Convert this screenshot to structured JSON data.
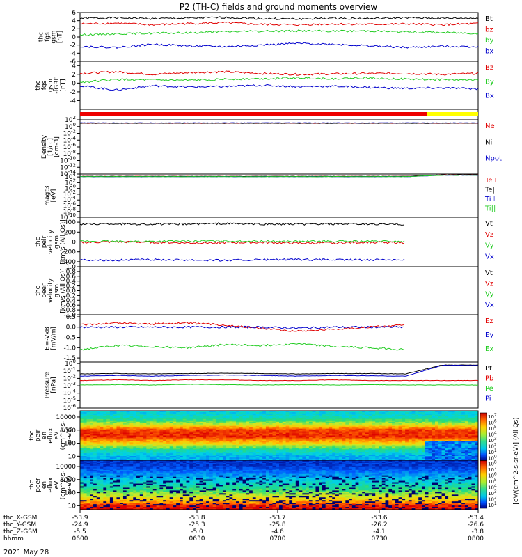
{
  "title": "P2 (TH-C) fields and ground moments overview",
  "date_label": "2021 May 28",
  "colors": {
    "black": "#000000",
    "red": "#e00000",
    "green": "#22cc22",
    "blue": "#0000cc",
    "magenta": "#cc00cc"
  },
  "chart_data": [
    {
      "type": "line",
      "ylabel": [
        "thc",
        "fgs",
        "gsm",
        "[nT]"
      ],
      "yticks": [
        "6",
        "4",
        "2",
        "0",
        "-2",
        "-4",
        "-6"
      ],
      "ylim": [
        -6,
        6
      ],
      "series": [
        {
          "name": "Bt",
          "color": "black",
          "values": [
            4.6,
            4.7,
            4.5,
            4.6,
            4.8,
            4.5,
            4.4,
            4.6,
            4.5,
            4.7,
            4.6,
            4.6
          ]
        },
        {
          "name": "bz",
          "color": "red",
          "values": [
            3.2,
            3.4,
            3.0,
            3.3,
            3.5,
            3.1,
            3.0,
            3.2,
            3.1,
            3.2,
            3.0,
            3.3
          ]
        },
        {
          "name": "by",
          "color": "green",
          "values": [
            0.5,
            0.8,
            0.9,
            1.0,
            1.3,
            1.4,
            1.5,
            1.4,
            1.5,
            1.2,
            1.1,
            0.9
          ]
        },
        {
          "name": "bx",
          "color": "blue",
          "values": [
            -2.3,
            -2.6,
            -1.8,
            -2.2,
            -2.4,
            -2.0,
            -1.6,
            -1.8,
            -2.2,
            -2.6,
            -2.3,
            -2.4
          ]
        }
      ]
    },
    {
      "type": "line",
      "ylabel": [
        "thc",
        "fgs",
        "gsm",
        "-IGRF",
        "[nT]"
      ],
      "yticks": [
        "4",
        "2",
        "0",
        "-2",
        "-4"
      ],
      "ylim": [
        -6,
        5
      ],
      "series": [
        {
          "name": "Bz",
          "color": "red",
          "values": [
            2.2,
            2.6,
            2.0,
            2.4,
            2.6,
            2.2,
            2.0,
            2.1,
            2.2,
            2.2,
            2.0,
            2.2
          ]
        },
        {
          "name": "By",
          "color": "green",
          "values": [
            0.2,
            0.8,
            0.7,
            0.6,
            0.9,
            1.0,
            1.2,
            1.0,
            1.2,
            0.9,
            0.8,
            0.7
          ]
        },
        {
          "name": "Bx",
          "color": "blue",
          "values": [
            -0.6,
            -1.6,
            -0.6,
            -0.9,
            -0.8,
            -0.5,
            -0.8,
            -0.7,
            -1.0,
            -1.2,
            -1.1,
            -1.3
          ]
        }
      ]
    },
    {
      "type": "bar",
      "ylabel": [],
      "yticks": [],
      "segments": [
        {
          "from": 0,
          "to": 0.872,
          "color": "#ee0000"
        },
        {
          "from": 0.872,
          "to": 1,
          "color": "#ffff00"
        }
      ]
    },
    {
      "type": "line",
      "ylabel": [
        "Density",
        "[1/cc]",
        "[cm-3]"
      ],
      "yticks": [
        "10^2",
        "10^0",
        "10^-2",
        "10^-4",
        "10^-6",
        "10^-8",
        "10^-10",
        "10^-12",
        "10^-14"
      ],
      "ylim": [
        -14,
        2
      ],
      "log": true,
      "series": [
        {
          "name": "Ne",
          "color": "red",
          "values": [
            1.0,
            1.0,
            1.0,
            1.0,
            1.0,
            1.0,
            1.0,
            1.0,
            1.0,
            1.0,
            1.0,
            1.0
          ]
        },
        {
          "name": "Ni",
          "color": "black",
          "values": [
            1.0,
            1.0,
            1.0,
            1.0,
            1.0,
            1.0,
            1.0,
            1.0,
            1.0,
            1.0,
            1.0,
            1.0
          ]
        },
        {
          "name": "Npot",
          "color": "blue",
          "values": [
            1.1,
            1.1,
            1.1,
            1.1,
            1.1,
            1.1,
            1.1,
            1.1,
            1.1,
            1.1,
            1.1,
            1.1
          ]
        }
      ]
    },
    {
      "type": "line",
      "ylabel": [
        "magt3",
        "[eV]"
      ],
      "yticks": [
        "10^4",
        "10^2",
        "10^0",
        "10^-2",
        "10^-4",
        "10^-6",
        "10^-8",
        "10^-10"
      ],
      "ylim": [
        -10,
        5
      ],
      "log": true,
      "series": [
        {
          "name": "Te⊥",
          "color": "red",
          "values": [
            4.2,
            4.2,
            4.2,
            4.2,
            4.2,
            4.2,
            4.2,
            4.2,
            4.2,
            4.2,
            4.7,
            4.7
          ]
        },
        {
          "name": "Te||",
          "color": "black",
          "values": [
            4.2,
            4.2,
            4.2,
            4.2,
            4.2,
            4.2,
            4.2,
            4.2,
            4.2,
            4.2,
            4.7,
            4.7
          ]
        },
        {
          "name": "Ti⊥",
          "color": "blue",
          "values": [
            4.1,
            4.1,
            4.1,
            4.1,
            4.1,
            4.1,
            4.1,
            4.1,
            4.1,
            4.1,
            4.6,
            4.6
          ]
        },
        {
          "name": "Ti||",
          "color": "green",
          "values": [
            4.1,
            4.1,
            4.1,
            4.1,
            4.1,
            4.1,
            4.1,
            4.1,
            4.1,
            4.1,
            4.6,
            4.6
          ]
        }
      ]
    },
    {
      "type": "line",
      "ylabel": [
        "thc",
        "peir",
        "velocity",
        "gsm",
        "[km/s (All Qs)]"
      ],
      "yticks": [
        "400",
        "200",
        "0",
        "-200",
        "-400"
      ],
      "ylim": [
        -500,
        500
      ],
      "series": [
        {
          "name": "Vt",
          "color": "black",
          "values": [
            360,
            368,
            358,
            362,
            372,
            360,
            358,
            362,
            360,
            356,
            null,
            null
          ]
        },
        {
          "name": "Vz",
          "color": "red",
          "values": [
            -10,
            0,
            -5,
            -20,
            -15,
            -10,
            -25,
            -20,
            -5,
            -15,
            null,
            null
          ]
        },
        {
          "name": "Vy",
          "color": "green",
          "values": [
            15,
            10,
            12,
            18,
            20,
            15,
            10,
            12,
            14,
            10,
            null,
            null
          ]
        },
        {
          "name": "Vx",
          "color": "blue",
          "values": [
            -360,
            -368,
            -358,
            -362,
            -372,
            -360,
            -358,
            -362,
            -360,
            -356,
            null,
            null
          ]
        }
      ]
    },
    {
      "type": "line",
      "ylabel": [
        "thc",
        "peer",
        "velocity",
        "gsm",
        "[km/s (All Qs)]"
      ],
      "yticks": [
        "1.0",
        "0.8",
        "0.6",
        "0.4",
        "0.2",
        "0.0",
        "-0.2",
        "-0.4",
        "-0.6",
        "-0.8",
        "-1.0"
      ],
      "ylim": [
        -1,
        1
      ],
      "series": [
        {
          "name": "Vt",
          "color": "black",
          "values": []
        },
        {
          "name": "Vz",
          "color": "red",
          "values": []
        },
        {
          "name": "Vy",
          "color": "green",
          "values": []
        },
        {
          "name": "Vx",
          "color": "blue",
          "values": []
        }
      ]
    },
    {
      "type": "line",
      "ylabel": [
        "E=-VxB",
        "[mV/m]"
      ],
      "yticks": [
        "0.5",
        "0.0",
        "-0.5",
        "-1.0",
        "-1.5"
      ],
      "ylim": [
        -1.7,
        0.6
      ],
      "series": [
        {
          "name": "Ez",
          "color": "red",
          "values": [
            0.1,
            0.2,
            0.15,
            0.2,
            0.1,
            -0.05,
            -0.2,
            -0.1,
            0.0,
            0.1,
            null,
            null
          ]
        },
        {
          "name": "Ey",
          "color": "blue",
          "values": [
            0.0,
            0.0,
            0.0,
            0.0,
            0.0,
            0.0,
            -0.05,
            0.0,
            0.0,
            0.0,
            null,
            null
          ]
        },
        {
          "name": "Ex",
          "color": "green",
          "values": [
            -1.1,
            -0.9,
            -0.95,
            -1.0,
            -0.85,
            -0.9,
            -0.8,
            -0.95,
            -1.0,
            -1.1,
            null,
            null
          ]
        }
      ]
    },
    {
      "type": "line",
      "ylabel": [
        "Pressure",
        "[nPa]"
      ],
      "yticks": [
        "10^0",
        "10^-1",
        "10^-2",
        "10^-3",
        "10^-4",
        "10^-5",
        "10^-6"
      ],
      "ylim": [
        -6,
        0.2
      ],
      "log": true,
      "series": [
        {
          "name": "Pt",
          "color": "black",
          "values": [
            -1.4,
            -1.35,
            -1.4,
            -1.35,
            -1.3,
            -1.35,
            -1.4,
            -1.35,
            -1.35,
            -1.4,
            -0.2,
            -0.2
          ]
        },
        {
          "name": "Pb",
          "color": "red",
          "values": [
            -2.3,
            -2.2,
            -2.3,
            -2.2,
            -2.2,
            -2.3,
            -2.3,
            -2.2,
            -2.3,
            -2.3,
            -2.3,
            -2.3
          ]
        },
        {
          "name": "Pe",
          "color": "green",
          "values": [
            -2.9,
            -2.85,
            -2.9,
            -2.8,
            -2.85,
            -2.9,
            -2.85,
            -2.9,
            -2.85,
            -2.9,
            -2.9,
            -2.9
          ]
        },
        {
          "name": "Pi",
          "color": "blue",
          "values": [
            -1.7,
            -1.6,
            -1.7,
            -1.6,
            -1.55,
            -1.6,
            -1.7,
            -1.6,
            -1.65,
            -1.7,
            -0.25,
            -0.25
          ]
        }
      ]
    },
    {
      "type": "heatmap",
      "ylabel": [
        "thc",
        "peir",
        "en",
        "eflux",
        "eV",
        "(cm^2-s-",
        "sr-eV)"
      ],
      "yticks": [
        "10000",
        "1000",
        "100",
        "10"
      ],
      "ylim": [
        5,
        30000
      ],
      "profile": [
        [
          1.0,
          0.3
        ],
        [
          1.5,
          0.45
        ],
        [
          2.0,
          0.72
        ],
        [
          2.5,
          0.95
        ],
        [
          3.0,
          0.92
        ],
        [
          3.5,
          0.6
        ],
        [
          4.0,
          0.4
        ],
        [
          4.5,
          0.35
        ]
      ]
    },
    {
      "type": "heatmap",
      "ylabel": [
        "thc",
        "peer",
        "en",
        "eflux",
        "eV",
        "(cm^2-s-",
        "sr-eV)"
      ],
      "yticks": [
        "10000",
        "1000",
        "100",
        "10"
      ],
      "ylim": [
        5,
        30000
      ],
      "profile": [
        [
          0.7,
          1.0
        ],
        [
          1.0,
          0.95
        ],
        [
          1.3,
          0.8
        ],
        [
          1.7,
          0.65
        ],
        [
          2.2,
          0.5
        ],
        [
          2.8,
          0.38
        ],
        [
          3.4,
          0.25
        ],
        [
          4.0,
          0.12
        ],
        [
          4.5,
          0.1
        ]
      ]
    }
  ],
  "colorbar": {
    "label": "[eV/(cm^2-s-sr-eV)] (All Qs)",
    "ticks": [
      "10^7",
      "10^6",
      "10^5",
      "10^4",
      "10^3",
      "10^2",
      "10^1",
      "10^0",
      "10^8",
      "10^7",
      "10^6",
      "10^5",
      "10^4",
      "10^3",
      "10^2",
      "10^1"
    ]
  },
  "x_axis": {
    "rows": [
      {
        "label": "thc_X-GSM",
        "values": [
          "-53.9",
          "-53.8",
          "-53.7",
          "-53.6",
          "-53.4"
        ]
      },
      {
        "label": "thc_Y-GSM",
        "values": [
          "-24.9",
          "-25.3",
          "-25.8",
          "-26.2",
          "-26.6"
        ]
      },
      {
        "label": "thc_Z-GSM",
        "values": [
          "-5.5",
          "-5.0",
          "-4.6",
          "-4.1",
          "-3.8"
        ]
      },
      {
        "label": "hhmm",
        "values": [
          "0600",
          "0630",
          "0700",
          "0730",
          "0800"
        ]
      }
    ]
  }
}
